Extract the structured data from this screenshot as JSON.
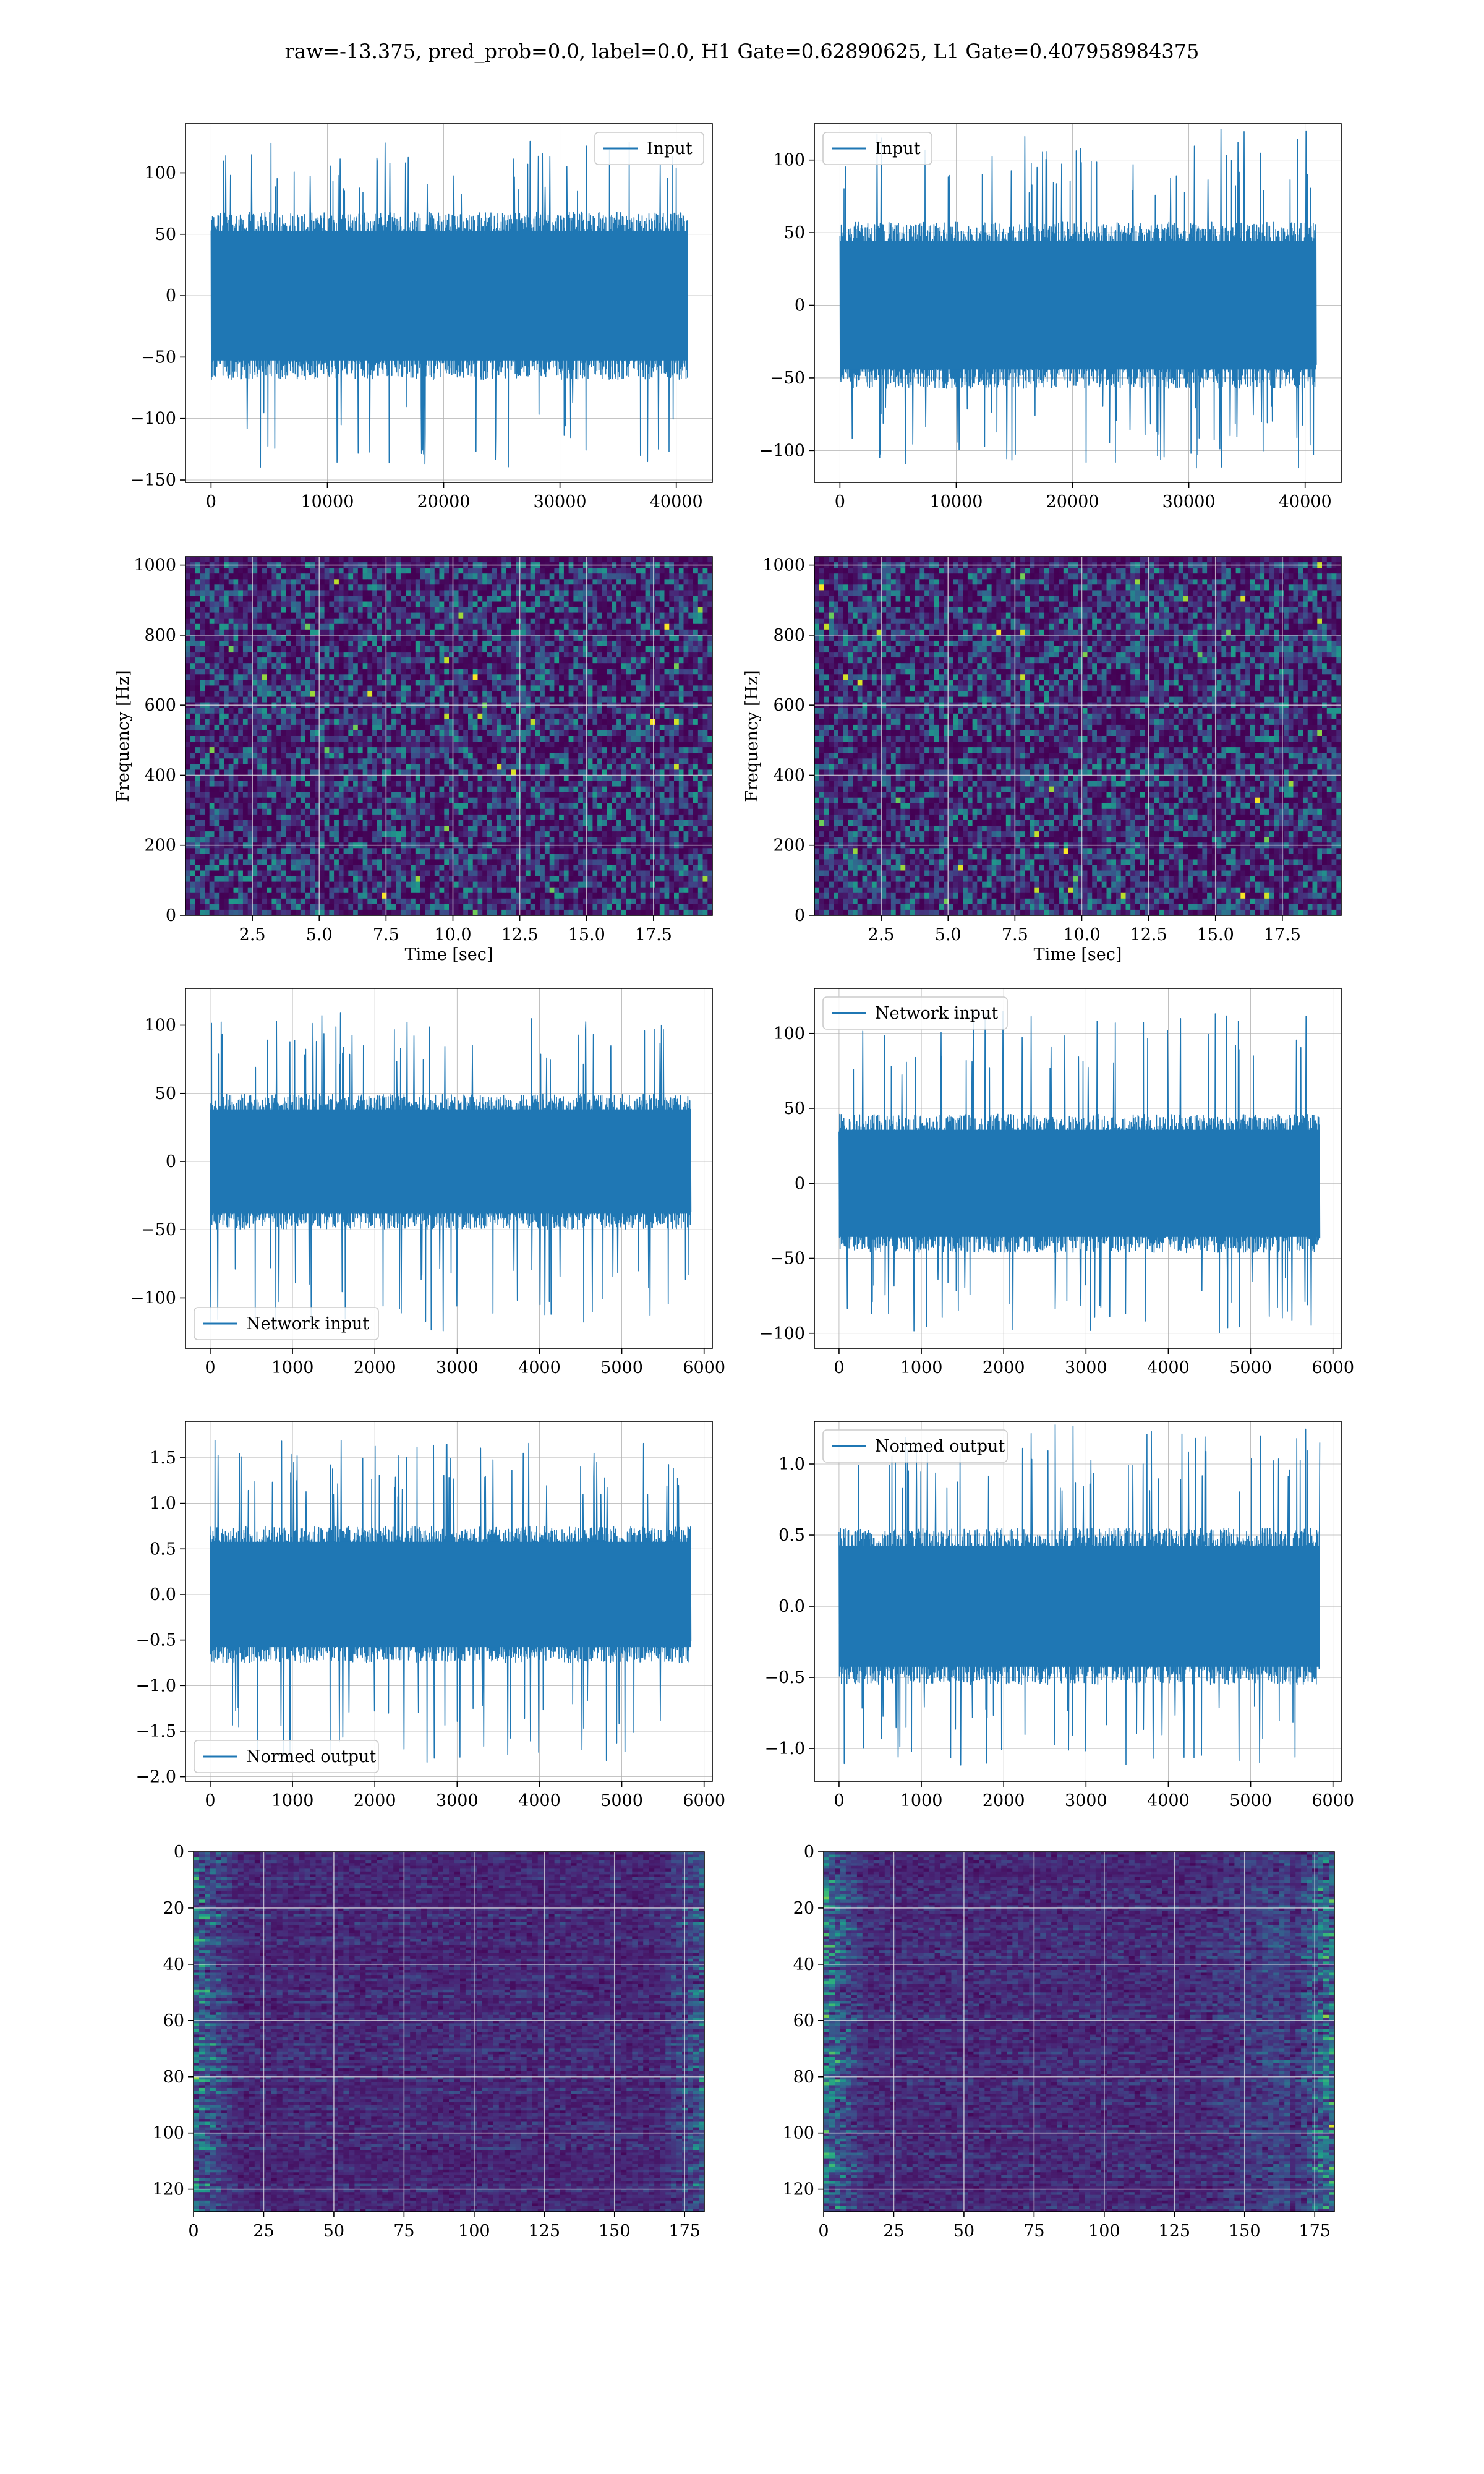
{
  "figure": {
    "title": "raw=-13.375, pred_prob=0.0, label=0.0, H1 Gate=0.62890625, L1 Gate=0.407958984375"
  },
  "chart_data": [
    {
      "id": "h1-input",
      "type": "line",
      "series": [
        {
          "name": "Input",
          "color": "#1f77b4",
          "x_range": [
            0,
            40960
          ],
          "amplitude": {
            "core": 62,
            "peak_max": 132,
            "peak_min": -140
          }
        }
      ],
      "xlim": [
        -2200,
        43100
      ],
      "ylim": [
        -152,
        140
      ],
      "xticks": [
        0,
        10000,
        20000,
        30000,
        40000
      ],
      "yticks": [
        -150,
        -100,
        -50,
        0,
        50,
        100
      ],
      "xlabel": "",
      "ylabel": "",
      "legend": "upper right",
      "grid": true
    },
    {
      "id": "l1-input",
      "type": "line",
      "series": [
        {
          "name": "Input",
          "color": "#1f77b4",
          "x_range": [
            0,
            40960
          ],
          "amplitude": {
            "core": 52,
            "peak_max": 122,
            "peak_min": -112
          }
        }
      ],
      "xlim": [
        -2200,
        43100
      ],
      "ylim": [
        -122,
        125
      ],
      "xticks": [
        0,
        10000,
        20000,
        30000,
        40000
      ],
      "yticks": [
        -100,
        -50,
        0,
        50,
        100
      ],
      "xlabel": "",
      "ylabel": "",
      "legend": "upper left",
      "grid": true
    },
    {
      "id": "h1-spectrogram",
      "type": "heatmap",
      "colormap": "viridis",
      "xlim": [
        0,
        19.7
      ],
      "ylim": [
        0,
        1024
      ],
      "xticks": [
        2.5,
        5.0,
        7.5,
        10.0,
        12.5,
        15.0,
        17.5
      ],
      "yticks": [
        0,
        200,
        400,
        600,
        800,
        1000
      ],
      "xlabel": "Time [sec]",
      "ylabel": "Frequency [Hz]",
      "grid": true,
      "dark_band_hz": 500
    },
    {
      "id": "l1-spectrogram",
      "type": "heatmap",
      "colormap": "viridis",
      "xlim": [
        0,
        19.7
      ],
      "ylim": [
        0,
        1024
      ],
      "xticks": [
        2.5,
        5.0,
        7.5,
        10.0,
        12.5,
        15.0,
        17.5
      ],
      "yticks": [
        0,
        200,
        400,
        600,
        800,
        1000
      ],
      "xlabel": "Time [sec]",
      "ylabel": "Frequency [Hz]",
      "grid": true,
      "dark_band_hz": 500
    },
    {
      "id": "h1-network-input",
      "type": "line",
      "series": [
        {
          "name": "Network input",
          "color": "#1f77b4",
          "x_range": [
            0,
            5840
          ],
          "amplitude": {
            "core": 45,
            "peak_max": 110,
            "peak_min": -125
          }
        }
      ],
      "xlim": [
        -300,
        6100
      ],
      "ylim": [
        -137,
        127
      ],
      "xticks": [
        0,
        1000,
        2000,
        3000,
        4000,
        5000,
        6000
      ],
      "yticks": [
        -100,
        -50,
        0,
        50,
        100
      ],
      "xlabel": "",
      "ylabel": "",
      "legend": "lower left",
      "grid": true
    },
    {
      "id": "l1-network-input",
      "type": "line",
      "series": [
        {
          "name": "Network input",
          "color": "#1f77b4",
          "x_range": [
            0,
            5840
          ],
          "amplitude": {
            "core": 42,
            "peak_max": 116,
            "peak_min": -101
          }
        }
      ],
      "xlim": [
        -300,
        6100
      ],
      "ylim": [
        -110,
        130
      ],
      "xticks": [
        0,
        1000,
        2000,
        3000,
        4000,
        5000,
        6000
      ],
      "yticks": [
        -100,
        -50,
        0,
        50,
        100
      ],
      "xlabel": "",
      "ylabel": "",
      "legend": "upper left",
      "grid": true
    },
    {
      "id": "h1-normed-output",
      "type": "line",
      "series": [
        {
          "name": "Normed output",
          "color": "#1f77b4",
          "x_range": [
            0,
            5840
          ],
          "amplitude": {
            "core": 0.68,
            "peak_max": 1.7,
            "peak_min": -1.85
          }
        }
      ],
      "xlim": [
        -300,
        6100
      ],
      "ylim": [
        -2.05,
        1.9
      ],
      "xticks": [
        0,
        1000,
        2000,
        3000,
        4000,
        5000,
        6000
      ],
      "yticks": [
        -2.0,
        -1.5,
        -1.0,
        -0.5,
        0.0,
        0.5,
        1.0,
        1.5
      ],
      "xlabel": "",
      "ylabel": "",
      "legend": "lower left",
      "grid": true
    },
    {
      "id": "l1-normed-output",
      "type": "line",
      "series": [
        {
          "name": "Normed output",
          "color": "#1f77b4",
          "x_range": [
            0,
            5840
          ],
          "amplitude": {
            "core": 0.5,
            "peak_max": 1.28,
            "peak_min": -1.13
          }
        }
      ],
      "xlim": [
        -300,
        6100
      ],
      "ylim": [
        -1.23,
        1.3
      ],
      "xticks": [
        0,
        1000,
        2000,
        3000,
        4000,
        5000,
        6000
      ],
      "yticks": [
        -1.0,
        -0.5,
        0.0,
        0.5,
        1.0
      ],
      "xlabel": "",
      "ylabel": "",
      "legend": "upper left",
      "grid": true
    },
    {
      "id": "h1-feature-map",
      "type": "heatmap",
      "colormap": "viridis",
      "xlim": [
        0,
        182
      ],
      "ylim": [
        0,
        128
      ],
      "y_inverted": true,
      "xticks": [
        0,
        25,
        50,
        75,
        100,
        125,
        150,
        175
      ],
      "yticks": [
        0,
        20,
        40,
        60,
        80,
        100,
        120
      ],
      "xlabel": "",
      "ylabel": "",
      "grid": true,
      "bright_edges": "left"
    },
    {
      "id": "l1-feature-map",
      "type": "heatmap",
      "colormap": "viridis",
      "xlim": [
        0,
        182
      ],
      "ylim": [
        0,
        128
      ],
      "y_inverted": true,
      "xticks": [
        0,
        25,
        50,
        75,
        100,
        125,
        150,
        175
      ],
      "yticks": [
        0,
        20,
        40,
        60,
        80,
        100,
        120
      ],
      "xlabel": "",
      "ylabel": "",
      "grid": true,
      "bright_edges": "both"
    }
  ]
}
